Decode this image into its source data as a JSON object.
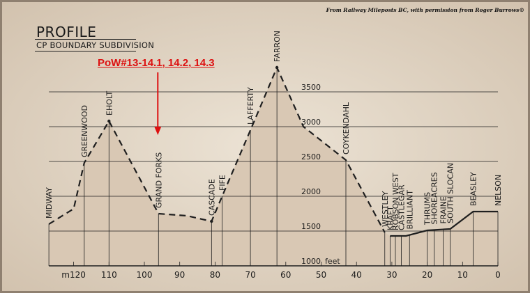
{
  "credit": "From Railway Mileposts BC, with permission from Roger Burrows©",
  "title": "PROFILE",
  "subtitle": "CP BOUNDARY SUBDIVISION",
  "annotation": {
    "text": "PoW#13-14.1, 14.2, 14.3",
    "color": "#dd1111",
    "points_to": "GRAND FORKS"
  },
  "elevation_unit": "feet",
  "elevation_ticks": [
    {
      "elev": 1000,
      "label": "1000"
    },
    {
      "elev": 1500,
      "label": "1500"
    },
    {
      "elev": 2000,
      "label": "2000"
    },
    {
      "elev": 2500,
      "label": "2500"
    },
    {
      "elev": 3000,
      "label": "3000"
    },
    {
      "elev": 3500,
      "label": "3500"
    }
  ],
  "mile_ticks": [
    {
      "mile": 120,
      "label": "m120"
    },
    {
      "mile": 110,
      "label": "110"
    },
    {
      "mile": 100,
      "label": "100"
    },
    {
      "mile": 90,
      "label": "90"
    },
    {
      "mile": 80,
      "label": "80"
    },
    {
      "mile": 70,
      "label": "70"
    },
    {
      "mile": 60,
      "label": "60"
    },
    {
      "mile": 50,
      "label": "50"
    },
    {
      "mile": 40,
      "label": "40"
    },
    {
      "mile": 30,
      "label": "30"
    },
    {
      "mile": 20,
      "label": "20"
    },
    {
      "mile": 10,
      "label": "10"
    },
    {
      "mile": 0,
      "label": "0"
    }
  ],
  "profile": [
    {
      "mile": 127,
      "elev": 1600
    },
    {
      "mile": 120,
      "elev": 1820
    },
    {
      "mile": 117,
      "elev": 2480
    },
    {
      "mile": 110,
      "elev": 3080
    },
    {
      "mile": 96,
      "elev": 1750
    },
    {
      "mile": 88,
      "elev": 1720
    },
    {
      "mile": 81,
      "elev": 1640
    },
    {
      "mile": 78,
      "elev": 2000
    },
    {
      "mile": 70,
      "elev": 2950
    },
    {
      "mile": 62.5,
      "elev": 3850
    },
    {
      "mile": 55,
      "elev": 3000
    },
    {
      "mile": 43,
      "elev": 2520
    },
    {
      "mile": 32,
      "elev": 1480
    }
  ],
  "profile_east": [
    {
      "mile": 30.5,
      "elev": 1430
    },
    {
      "mile": 26,
      "elev": 1430
    },
    {
      "mile": 20,
      "elev": 1510
    },
    {
      "mile": 13.5,
      "elev": 1530
    },
    {
      "mile": 7,
      "elev": 1780
    },
    {
      "mile": 0,
      "elev": 1780
    }
  ],
  "stations": [
    {
      "name": "MIDWAY",
      "mile": 127,
      "elev": 1600
    },
    {
      "name": "GREENWOOD",
      "mile": 117,
      "elev": 2480
    },
    {
      "name": "EHOLT",
      "mile": 110,
      "elev": 3080
    },
    {
      "name": "GRAND FORKS",
      "mile": 96,
      "elev": 1750
    },
    {
      "name": "CASCADE",
      "mile": 81,
      "elev": 1640
    },
    {
      "name": "FIFE",
      "mile": 78,
      "elev": 2000
    },
    {
      "name": "LAFFERTY",
      "mile": 70,
      "elev": 2950
    },
    {
      "name": "FARRON",
      "mile": 62.5,
      "elev": 3850
    },
    {
      "name": "COYKENDAHL",
      "mile": 43,
      "elev": 2520
    },
    {
      "name": "WESTLEY",
      "mile": 32,
      "elev": 1480
    },
    {
      "name": "KRAFT",
      "mile": 30.5,
      "elev": 1430
    },
    {
      "name": "ROBSON WEST",
      "mile": 29,
      "elev": 1430
    },
    {
      "name": "CASTLEGAR",
      "mile": 27.3,
      "elev": 1430
    },
    {
      "name": "BRILLIANT",
      "mile": 25,
      "elev": 1445
    },
    {
      "name": "THRUMS",
      "mile": 20,
      "elev": 1510
    },
    {
      "name": "SHOREACRES",
      "mile": 18,
      "elev": 1515
    },
    {
      "name": "FRAINE",
      "mile": 15.5,
      "elev": 1525
    },
    {
      "name": "SOUTH SLOCAN",
      "mile": 13.5,
      "elev": 1530
    },
    {
      "name": "BEASLEY",
      "mile": 7,
      "elev": 1780
    },
    {
      "name": "NELSON",
      "mile": 0,
      "elev": 1780
    }
  ],
  "colors": {
    "fill": "#d9c8b4",
    "line": "#1f1f1f",
    "arrow": "#dd1111"
  }
}
